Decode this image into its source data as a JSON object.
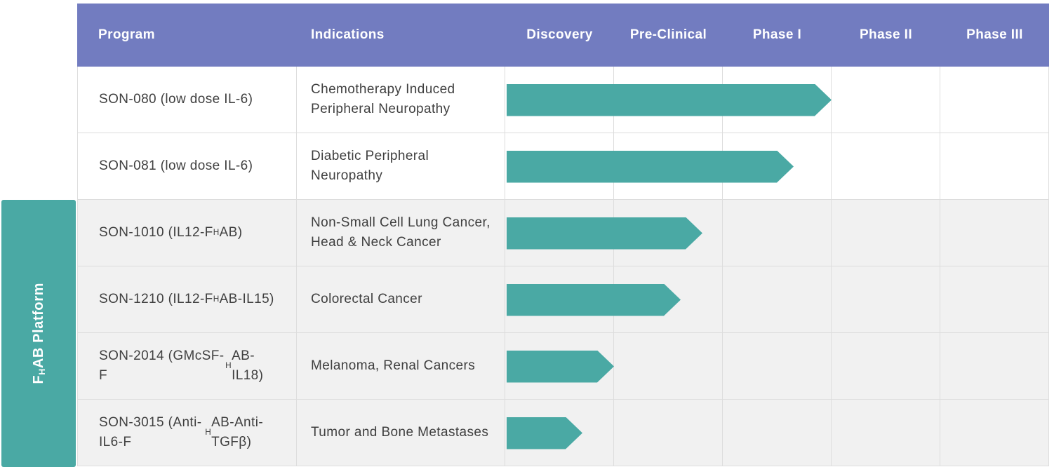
{
  "colors": {
    "header_bg": "#727CC0",
    "arrow_teal": "#4AA9A4",
    "row_alt_gray": "#F1F1F1",
    "gridline": "#DDDDDD",
    "body_text": "#3F3F3F"
  },
  "chart_data": {
    "type": "bar",
    "subtype": "pipeline-gantt",
    "title": "",
    "columns_header": [
      "Program",
      "Indications"
    ],
    "phases": [
      "Discovery",
      "Pre-Clinical",
      "Phase I",
      "Phase II",
      "Phase III"
    ],
    "axis": {
      "x_units": "development phase (1 unit = 1 phase column)",
      "x_range": [
        0,
        5
      ],
      "grid": "vertical column separators"
    },
    "legend_position": "none",
    "group": {
      "label": "FHAB Platform",
      "label_segments": [
        {
          "t": "F"
        },
        {
          "sub": "H"
        },
        {
          "t": "AB Platform"
        }
      ],
      "applies_to_rows": [
        2,
        3,
        4,
        5
      ]
    },
    "series": [
      {
        "program": "SON-080 (low dose IL-6)",
        "program_segments": [
          {
            "t": "SON-080 (low dose IL-6)"
          }
        ],
        "indication": "Chemotherapy Induced Peripheral Neuropathy",
        "end_phase_units": 3.0,
        "stage_reached": "Phase I completed"
      },
      {
        "program": "SON-081 (low dose IL-6)",
        "program_segments": [
          {
            "t": "SON-081 (low dose IL-6)"
          }
        ],
        "indication": "Diabetic Peripheral Neuropathy",
        "end_phase_units": 2.65,
        "stage_reached": "Phase I"
      },
      {
        "program": "SON-1010 (IL12-FHAB)",
        "program_segments": [
          {
            "t": "SON-1010 (IL12-F"
          },
          {
            "sub": "H"
          },
          {
            "t": "AB)"
          }
        ],
        "indication": "Non-Small Cell Lung Cancer, Head & Neck Cancer",
        "end_phase_units": 1.81,
        "stage_reached": "Pre-Clinical"
      },
      {
        "program": "SON-1210 (IL12-FHAB-IL15)",
        "program_segments": [
          {
            "t": "SON-1210 (IL12-F"
          },
          {
            "sub": "H"
          },
          {
            "t": "AB-IL15)"
          }
        ],
        "indication": "Colorectal Cancer",
        "end_phase_units": 1.61,
        "stage_reached": "Pre-Clinical"
      },
      {
        "program": "SON-2014 (GMcSF-FHAB-IL18)",
        "program_segments": [
          {
            "t": "SON-2014 (GMcSF-F"
          },
          {
            "sub": "H"
          },
          {
            "t": "AB-IL18)"
          }
        ],
        "indication": "Melanoma, Renal Cancers",
        "end_phase_units": 1.0,
        "stage_reached": "Discovery completed"
      },
      {
        "program": "SON-3015 (Anti-IL6-FHAB-Anti-TGFβ)",
        "program_segments": [
          {
            "t": "SON-3015 (Anti-IL6-F"
          },
          {
            "sub": "H"
          },
          {
            "t": "AB-Anti-TGFβ)"
          }
        ],
        "indication": "Tumor and Bone Metastases",
        "end_phase_units": 0.71,
        "stage_reached": "Discovery"
      }
    ]
  }
}
